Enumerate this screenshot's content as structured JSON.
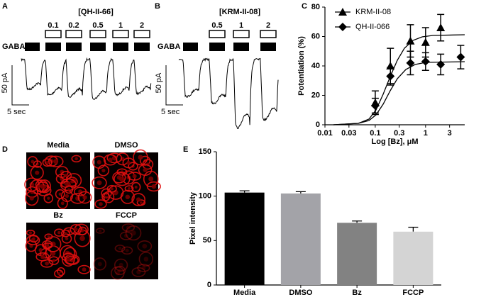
{
  "panels": {
    "A": {
      "letter": "A",
      "compound": "[QH-II-66]",
      "concentrations": [
        0.1,
        0.2,
        0.5,
        1,
        2
      ],
      "gaba": "GABA",
      "scale_current": "50 pA",
      "scale_time": "5 sec"
    },
    "B": {
      "letter": "B",
      "compound": "[KRM-II-08]",
      "concentrations": [
        0.5,
        1,
        2
      ],
      "gaba": "GABA",
      "scale_current": "50 pA",
      "scale_time": "5 sec"
    },
    "D": {
      "letter": "D",
      "images": [
        "Media",
        "DMSO",
        "Bz",
        "FCCP"
      ]
    }
  },
  "chart_data": [
    {
      "type": "line",
      "panel": "C",
      "xlabel": "Log [Bz], μM",
      "ylabel": "Potentiation (%)",
      "xscale": "log",
      "xlim": [
        0.01,
        6
      ],
      "xticks": [
        0.01,
        0.03,
        0.1,
        0.3,
        1,
        3
      ],
      "ylim": [
        0,
        80
      ],
      "yticks": [
        0,
        20,
        40,
        60,
        80
      ],
      "series": [
        {
          "name": "KRM-II-08",
          "marker": "triangle",
          "color": "#000000",
          "x": [
            0.1,
            0.2,
            0.5,
            1,
            2
          ],
          "values": [
            15,
            40,
            57,
            56,
            66
          ],
          "errors": [
            8,
            12,
            11,
            10,
            9
          ]
        },
        {
          "name": "QH-II-066",
          "marker": "diamond",
          "color": "#000000",
          "x": [
            0.1,
            0.2,
            0.5,
            1,
            2,
            5
          ],
          "values": [
            13,
            33,
            42,
            43,
            41,
            46
          ],
          "errors": [
            5,
            6,
            8,
            6,
            7,
            8
          ]
        }
      ]
    },
    {
      "type": "bar",
      "panel": "E",
      "ylabel": "Pixel intensity",
      "ylim": [
        0,
        150
      ],
      "yticks": [
        0,
        50,
        100,
        150
      ],
      "categories": [
        "Media",
        "DMSO",
        "Bz",
        "FCCP"
      ],
      "values": [
        104,
        103,
        70,
        60
      ],
      "errors": [
        2,
        2,
        2,
        5
      ],
      "colors": [
        "#000000",
        "#a3a3a8",
        "#828282",
        "#d4d4d4"
      ]
    }
  ]
}
